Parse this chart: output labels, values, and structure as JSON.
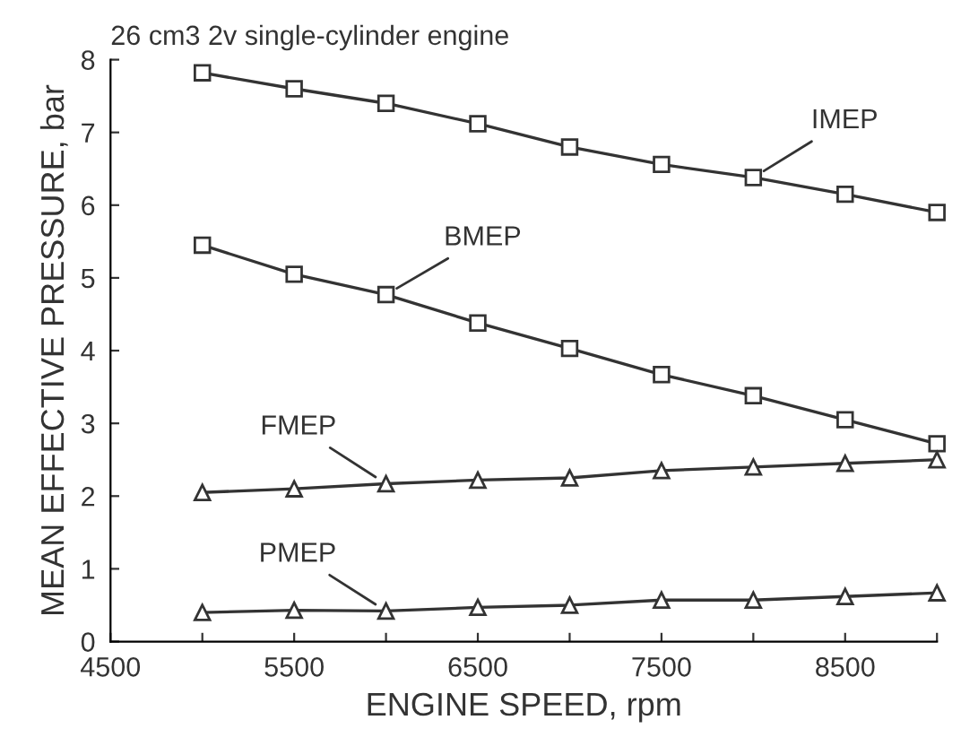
{
  "chart_data": {
    "type": "line",
    "title": "26 cm3 2v single-cylinder engine",
    "xlabel": "ENGINE SPEED, rpm",
    "ylabel": "MEAN EFFECTIVE PRESSURE, bar",
    "x": [
      5000,
      5500,
      6000,
      6500,
      7000,
      7500,
      8000,
      8500,
      9000
    ],
    "series": [
      {
        "name": "IMEP",
        "color": "#333333",
        "marker": "square",
        "values": [
          7.82,
          7.6,
          7.4,
          7.12,
          6.8,
          6.56,
          6.38,
          6.15,
          5.9
        ]
      },
      {
        "name": "BMEP",
        "color": "#333333",
        "marker": "square",
        "values": [
          5.45,
          5.05,
          4.77,
          4.38,
          4.03,
          3.67,
          3.38,
          3.05,
          2.72
        ]
      },
      {
        "name": "FMEP",
        "color": "#333333",
        "marker": "triangle",
        "values": [
          2.05,
          2.1,
          2.17,
          2.22,
          2.25,
          2.35,
          2.4,
          2.45,
          2.5
        ]
      },
      {
        "name": "PMEP",
        "color": "#333333",
        "marker": "triangle",
        "values": [
          0.4,
          0.43,
          0.42,
          0.47,
          0.5,
          0.57,
          0.57,
          0.62,
          0.67
        ]
      }
    ],
    "xlim": [
      4500,
      9000
    ],
    "xticks": [
      4500,
      {
        "value": 5000,
        "label": null
      },
      5500,
      {
        "value": 6000,
        "label": null
      },
      6500,
      {
        "value": 7000,
        "label": null
      },
      7500,
      {
        "value": 8000,
        "label": null
      },
      8500,
      {
        "value": 9000,
        "label": null
      }
    ],
    "ylim": [
      0,
      8
    ],
    "yticks": [
      0,
      1,
      2,
      3,
      4,
      5,
      6,
      7,
      8
    ],
    "grid": false,
    "legend": false,
    "line_style": "solid"
  }
}
